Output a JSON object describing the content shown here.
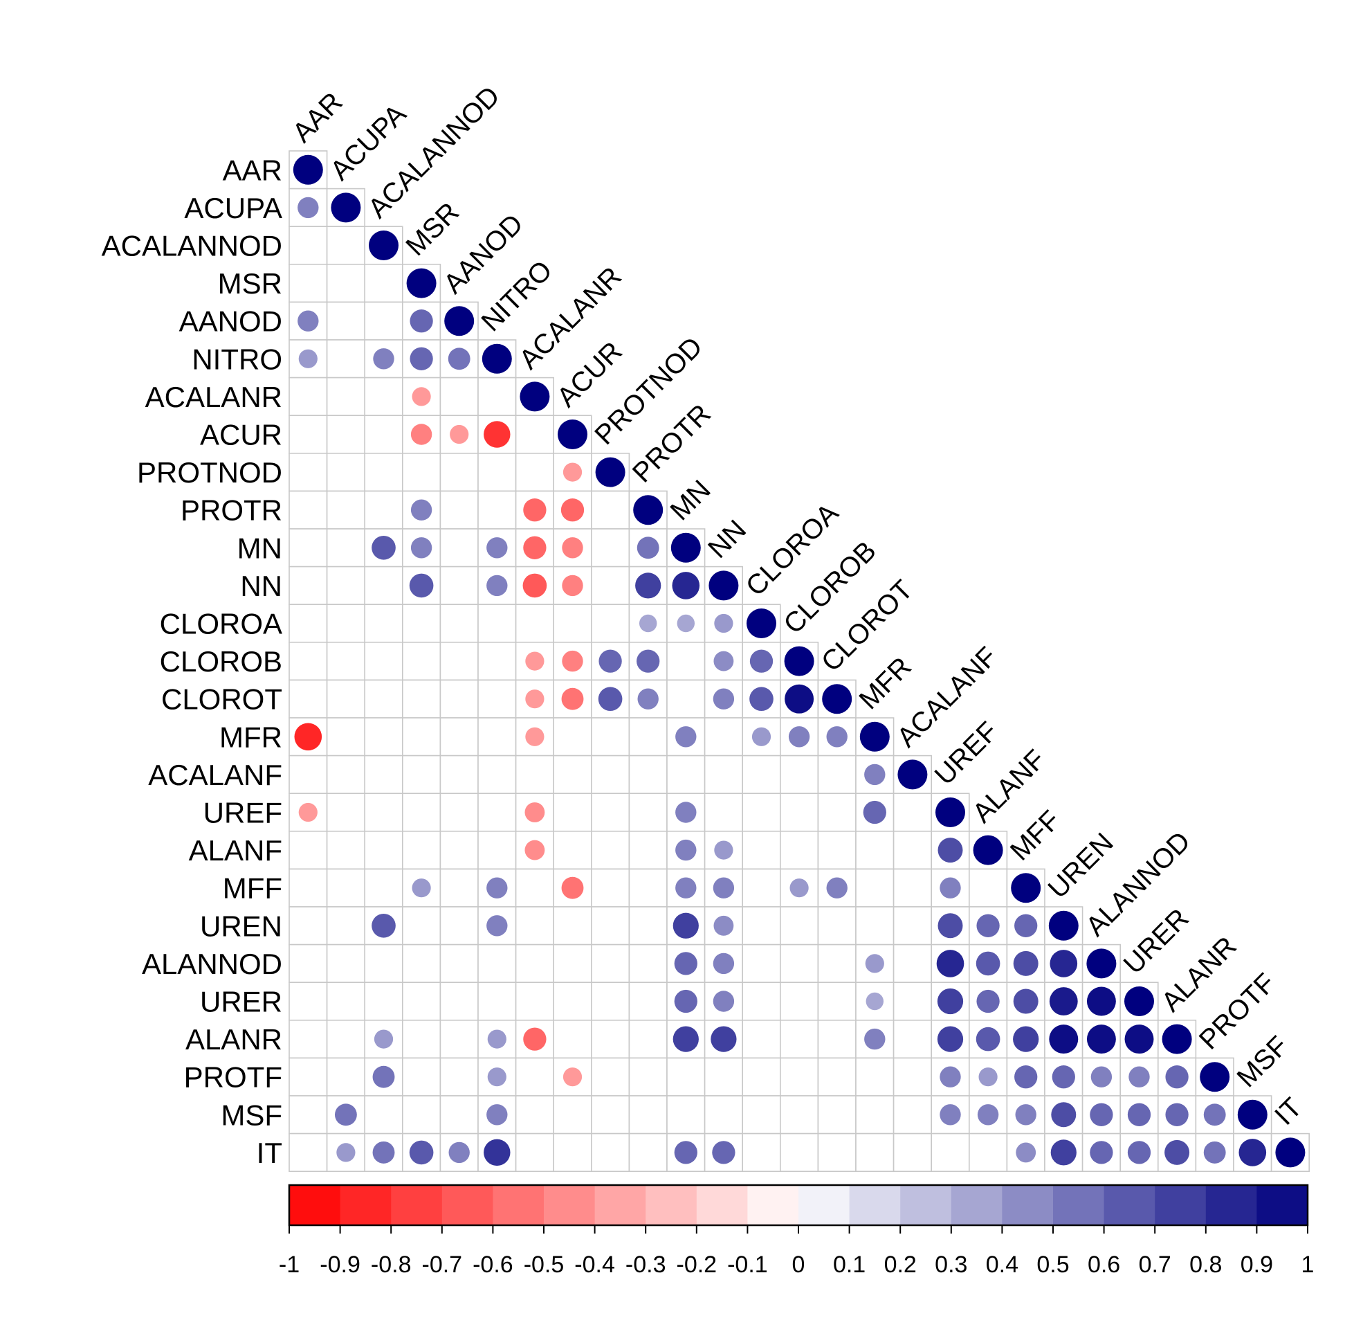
{
  "chart_data": {
    "type": "heatmap",
    "subtype": "correlation-lower-triangle",
    "title": "",
    "variables": [
      "AAR",
      "ACUPA",
      "ACALANNOD",
      "MSR",
      "AANOD",
      "NITRO",
      "ACALANR",
      "ACUR",
      "PROTNOD",
      "PROTR",
      "MN",
      "NN",
      "CLOROA",
      "CLOROB",
      "CLOROT",
      "MFR",
      "ACALANF",
      "UREF",
      "ALANF",
      "MFF",
      "UREN",
      "ALANNOD",
      "URER",
      "ALANR",
      "PROTF",
      "MSF",
      "IT"
    ],
    "cells": [
      {
        "row": "AAR",
        "col": "AAR",
        "value": 1.0
      },
      {
        "row": "ACUPA",
        "col": "AAR",
        "value": 0.5
      },
      {
        "row": "ACUPA",
        "col": "ACUPA",
        "value": 1.0
      },
      {
        "row": "ACALANNOD",
        "col": "ACALANNOD",
        "value": 1.0
      },
      {
        "row": "MSR",
        "col": "MSR",
        "value": 1.0
      },
      {
        "row": "AANOD",
        "col": "AAR",
        "value": 0.5
      },
      {
        "row": "AANOD",
        "col": "MSR",
        "value": 0.6
      },
      {
        "row": "AANOD",
        "col": "AANOD",
        "value": 1.0
      },
      {
        "row": "NITRO",
        "col": "AAR",
        "value": 0.4
      },
      {
        "row": "NITRO",
        "col": "ACALANNOD",
        "value": 0.5
      },
      {
        "row": "NITRO",
        "col": "MSR",
        "value": 0.6
      },
      {
        "row": "NITRO",
        "col": "AANOD",
        "value": 0.55
      },
      {
        "row": "NITRO",
        "col": "NITRO",
        "value": 1.0
      },
      {
        "row": "ACALANR",
        "col": "MSR",
        "value": -0.4
      },
      {
        "row": "ACALANR",
        "col": "ACALANR",
        "value": 1.0
      },
      {
        "row": "ACUR",
        "col": "MSR",
        "value": -0.5
      },
      {
        "row": "ACUR",
        "col": "AANOD",
        "value": -0.4
      },
      {
        "row": "ACUR",
        "col": "NITRO",
        "value": -0.8
      },
      {
        "row": "ACUR",
        "col": "ACUR",
        "value": 1.0
      },
      {
        "row": "PROTNOD",
        "col": "ACUR",
        "value": -0.4
      },
      {
        "row": "PROTNOD",
        "col": "PROTNOD",
        "value": 1.0
      },
      {
        "row": "PROTR",
        "col": "MSR",
        "value": 0.5
      },
      {
        "row": "PROTR",
        "col": "ACALANR",
        "value": -0.6
      },
      {
        "row": "PROTR",
        "col": "ACUR",
        "value": -0.6
      },
      {
        "row": "PROTR",
        "col": "PROTR",
        "value": 1.0
      },
      {
        "row": "MN",
        "col": "ACALANNOD",
        "value": 0.65
      },
      {
        "row": "MN",
        "col": "MSR",
        "value": 0.5
      },
      {
        "row": "MN",
        "col": "NITRO",
        "value": 0.5
      },
      {
        "row": "MN",
        "col": "ACALANR",
        "value": -0.6
      },
      {
        "row": "MN",
        "col": "ACUR",
        "value": -0.5
      },
      {
        "row": "MN",
        "col": "PROTR",
        "value": 0.55
      },
      {
        "row": "MN",
        "col": "MN",
        "value": 1.0
      },
      {
        "row": "NN",
        "col": "MSR",
        "value": 0.65
      },
      {
        "row": "NN",
        "col": "NITRO",
        "value": 0.5
      },
      {
        "row": "NN",
        "col": "ACALANR",
        "value": -0.65
      },
      {
        "row": "NN",
        "col": "ACUR",
        "value": -0.5
      },
      {
        "row": "NN",
        "col": "PROTR",
        "value": 0.75
      },
      {
        "row": "NN",
        "col": "MN",
        "value": 0.85
      },
      {
        "row": "NN",
        "col": "NN",
        "value": 1.0
      },
      {
        "row": "CLOROA",
        "col": "PROTR",
        "value": 0.35
      },
      {
        "row": "CLOROA",
        "col": "MN",
        "value": 0.35
      },
      {
        "row": "CLOROA",
        "col": "NN",
        "value": 0.4
      },
      {
        "row": "CLOROA",
        "col": "CLOROA",
        "value": 1.0
      },
      {
        "row": "CLOROB",
        "col": "ACALANR",
        "value": -0.4
      },
      {
        "row": "CLOROB",
        "col": "ACUR",
        "value": -0.5
      },
      {
        "row": "CLOROB",
        "col": "PROTNOD",
        "value": 0.6
      },
      {
        "row": "CLOROB",
        "col": "PROTR",
        "value": 0.6
      },
      {
        "row": "CLOROB",
        "col": "NN",
        "value": 0.45
      },
      {
        "row": "CLOROB",
        "col": "CLOROA",
        "value": 0.6
      },
      {
        "row": "CLOROB",
        "col": "CLOROB",
        "value": 1.0
      },
      {
        "row": "CLOROT",
        "col": "ACALANR",
        "value": -0.4
      },
      {
        "row": "CLOROT",
        "col": "ACUR",
        "value": -0.55
      },
      {
        "row": "CLOROT",
        "col": "PROTNOD",
        "value": 0.65
      },
      {
        "row": "CLOROT",
        "col": "PROTR",
        "value": 0.5
      },
      {
        "row": "CLOROT",
        "col": "NN",
        "value": 0.5
      },
      {
        "row": "CLOROT",
        "col": "CLOROA",
        "value": 0.65
      },
      {
        "row": "CLOROT",
        "col": "CLOROB",
        "value": 0.95
      },
      {
        "row": "CLOROT",
        "col": "CLOROT",
        "value": 1.0
      },
      {
        "row": "MFR",
        "col": "AAR",
        "value": -0.85
      },
      {
        "row": "MFR",
        "col": "ACALANR",
        "value": -0.4
      },
      {
        "row": "MFR",
        "col": "MN",
        "value": 0.5
      },
      {
        "row": "MFR",
        "col": "CLOROA",
        "value": 0.4
      },
      {
        "row": "MFR",
        "col": "CLOROB",
        "value": 0.5
      },
      {
        "row": "MFR",
        "col": "CLOROT",
        "value": 0.5
      },
      {
        "row": "MFR",
        "col": "MFR",
        "value": 1.0
      },
      {
        "row": "ACALANF",
        "col": "MFR",
        "value": 0.5
      },
      {
        "row": "ACALANF",
        "col": "ACALANF",
        "value": 1.0
      },
      {
        "row": "UREF",
        "col": "AAR",
        "value": -0.4
      },
      {
        "row": "UREF",
        "col": "ACALANR",
        "value": -0.45
      },
      {
        "row": "UREF",
        "col": "MN",
        "value": 0.5
      },
      {
        "row": "UREF",
        "col": "MFR",
        "value": 0.6
      },
      {
        "row": "UREF",
        "col": "UREF",
        "value": 1.0
      },
      {
        "row": "ALANF",
        "col": "ACALANR",
        "value": -0.45
      },
      {
        "row": "ALANF",
        "col": "MN",
        "value": 0.5
      },
      {
        "row": "ALANF",
        "col": "NN",
        "value": 0.4
      },
      {
        "row": "ALANF",
        "col": "UREF",
        "value": 0.7
      },
      {
        "row": "ALANF",
        "col": "ALANF",
        "value": 1.0
      },
      {
        "row": "MFF",
        "col": "MSR",
        "value": 0.4
      },
      {
        "row": "MFF",
        "col": "NITRO",
        "value": 0.5
      },
      {
        "row": "MFF",
        "col": "ACUR",
        "value": -0.55
      },
      {
        "row": "MFF",
        "col": "MN",
        "value": 0.5
      },
      {
        "row": "MFF",
        "col": "NN",
        "value": 0.5
      },
      {
        "row": "MFF",
        "col": "CLOROB",
        "value": 0.4
      },
      {
        "row": "MFF",
        "col": "CLOROT",
        "value": 0.5
      },
      {
        "row": "MFF",
        "col": "UREF",
        "value": 0.5
      },
      {
        "row": "MFF",
        "col": "MFF",
        "value": 1.0
      },
      {
        "row": "UREN",
        "col": "ACALANNOD",
        "value": 0.65
      },
      {
        "row": "UREN",
        "col": "NITRO",
        "value": 0.5
      },
      {
        "row": "UREN",
        "col": "MN",
        "value": 0.75
      },
      {
        "row": "UREN",
        "col": "NN",
        "value": 0.45
      },
      {
        "row": "UREN",
        "col": "UREF",
        "value": 0.7
      },
      {
        "row": "UREN",
        "col": "ALANF",
        "value": 0.6
      },
      {
        "row": "UREN",
        "col": "MFF",
        "value": 0.6
      },
      {
        "row": "UREN",
        "col": "UREN",
        "value": 1.0
      },
      {
        "row": "ALANNOD",
        "col": "MN",
        "value": 0.6
      },
      {
        "row": "ALANNOD",
        "col": "NN",
        "value": 0.5
      },
      {
        "row": "ALANNOD",
        "col": "MFR",
        "value": 0.4
      },
      {
        "row": "ALANNOD",
        "col": "UREF",
        "value": 0.85
      },
      {
        "row": "ALANNOD",
        "col": "ALANF",
        "value": 0.65
      },
      {
        "row": "ALANNOD",
        "col": "MFF",
        "value": 0.7
      },
      {
        "row": "ALANNOD",
        "col": "UREN",
        "value": 0.85
      },
      {
        "row": "ALANNOD",
        "col": "ALANNOD",
        "value": 1.0
      },
      {
        "row": "URER",
        "col": "MN",
        "value": 0.6
      },
      {
        "row": "URER",
        "col": "NN",
        "value": 0.5
      },
      {
        "row": "URER",
        "col": "MFR",
        "value": 0.35
      },
      {
        "row": "URER",
        "col": "UREF",
        "value": 0.75
      },
      {
        "row": "URER",
        "col": "ALANF",
        "value": 0.6
      },
      {
        "row": "URER",
        "col": "MFF",
        "value": 0.7
      },
      {
        "row": "URER",
        "col": "UREN",
        "value": 0.9
      },
      {
        "row": "URER",
        "col": "ALANNOD",
        "value": 0.95
      },
      {
        "row": "URER",
        "col": "URER",
        "value": 1.0
      },
      {
        "row": "ALANR",
        "col": "ACALANNOD",
        "value": 0.4
      },
      {
        "row": "ALANR",
        "col": "NITRO",
        "value": 0.4
      },
      {
        "row": "ALANR",
        "col": "ACALANR",
        "value": -0.6
      },
      {
        "row": "ALANR",
        "col": "MN",
        "value": 0.75
      },
      {
        "row": "ALANR",
        "col": "NN",
        "value": 0.75
      },
      {
        "row": "ALANR",
        "col": "MFR",
        "value": 0.5
      },
      {
        "row": "ALANR",
        "col": "UREF",
        "value": 0.75
      },
      {
        "row": "ALANR",
        "col": "ALANF",
        "value": 0.65
      },
      {
        "row": "ALANR",
        "col": "MFF",
        "value": 0.75
      },
      {
        "row": "ALANR",
        "col": "UREN",
        "value": 0.95
      },
      {
        "row": "ALANR",
        "col": "ALANNOD",
        "value": 0.95
      },
      {
        "row": "ALANR",
        "col": "URER",
        "value": 0.95
      },
      {
        "row": "ALANR",
        "col": "ALANR",
        "value": 1.0
      },
      {
        "row": "PROTF",
        "col": "ACALANNOD",
        "value": 0.55
      },
      {
        "row": "PROTF",
        "col": "NITRO",
        "value": 0.4
      },
      {
        "row": "PROTF",
        "col": "ACUR",
        "value": -0.4
      },
      {
        "row": "PROTF",
        "col": "UREF",
        "value": 0.5
      },
      {
        "row": "PROTF",
        "col": "ALANF",
        "value": 0.4
      },
      {
        "row": "PROTF",
        "col": "MFF",
        "value": 0.6
      },
      {
        "row": "PROTF",
        "col": "UREN",
        "value": 0.6
      },
      {
        "row": "PROTF",
        "col": "ALANNOD",
        "value": 0.5
      },
      {
        "row": "PROTF",
        "col": "URER",
        "value": 0.5
      },
      {
        "row": "PROTF",
        "col": "ALANR",
        "value": 0.6
      },
      {
        "row": "PROTF",
        "col": "PROTF",
        "value": 1.0
      },
      {
        "row": "MSF",
        "col": "ACUPA",
        "value": 0.55
      },
      {
        "row": "MSF",
        "col": "NITRO",
        "value": 0.5
      },
      {
        "row": "MSF",
        "col": "UREF",
        "value": 0.5
      },
      {
        "row": "MSF",
        "col": "ALANF",
        "value": 0.5
      },
      {
        "row": "MSF",
        "col": "MFF",
        "value": 0.5
      },
      {
        "row": "MSF",
        "col": "UREN",
        "value": 0.7
      },
      {
        "row": "MSF",
        "col": "ALANNOD",
        "value": 0.6
      },
      {
        "row": "MSF",
        "col": "URER",
        "value": 0.6
      },
      {
        "row": "MSF",
        "col": "ALANR",
        "value": 0.6
      },
      {
        "row": "MSF",
        "col": "PROTF",
        "value": 0.55
      },
      {
        "row": "MSF",
        "col": "MSF",
        "value": 1.0
      },
      {
        "row": "IT",
        "col": "ACUPA",
        "value": 0.4
      },
      {
        "row": "IT",
        "col": "ACALANNOD",
        "value": 0.55
      },
      {
        "row": "IT",
        "col": "MSR",
        "value": 0.65
      },
      {
        "row": "IT",
        "col": "AANOD",
        "value": 0.5
      },
      {
        "row": "IT",
        "col": "NITRO",
        "value": 0.8
      },
      {
        "row": "IT",
        "col": "MN",
        "value": 0.6
      },
      {
        "row": "IT",
        "col": "NN",
        "value": 0.6
      },
      {
        "row": "IT",
        "col": "MFF",
        "value": 0.45
      },
      {
        "row": "IT",
        "col": "UREN",
        "value": 0.75
      },
      {
        "row": "IT",
        "col": "ALANNOD",
        "value": 0.6
      },
      {
        "row": "IT",
        "col": "URER",
        "value": 0.6
      },
      {
        "row": "IT",
        "col": "ALANR",
        "value": 0.7
      },
      {
        "row": "IT",
        "col": "PROTF",
        "value": 0.55
      },
      {
        "row": "IT",
        "col": "MSF",
        "value": 0.85
      },
      {
        "row": "IT",
        "col": "IT",
        "value": 1.0
      }
    ],
    "colorbar": {
      "range": [
        -1,
        1
      ],
      "tick_labels": [
        "-1",
        "-0.9",
        "-0.8",
        "-0.7",
        "-0.6",
        "-0.5",
        "-0.4",
        "-0.3",
        "-0.2",
        "-0.1",
        "0",
        "0.1",
        "0.2",
        "0.3",
        "0.4",
        "0.5",
        "0.6",
        "0.7",
        "0.8",
        "0.9",
        "1"
      ],
      "neg_color": "#FF0000",
      "mid_color": "#FFFFFF",
      "pos_color": "#00007F"
    },
    "grid": true,
    "legend": "bottom"
  }
}
